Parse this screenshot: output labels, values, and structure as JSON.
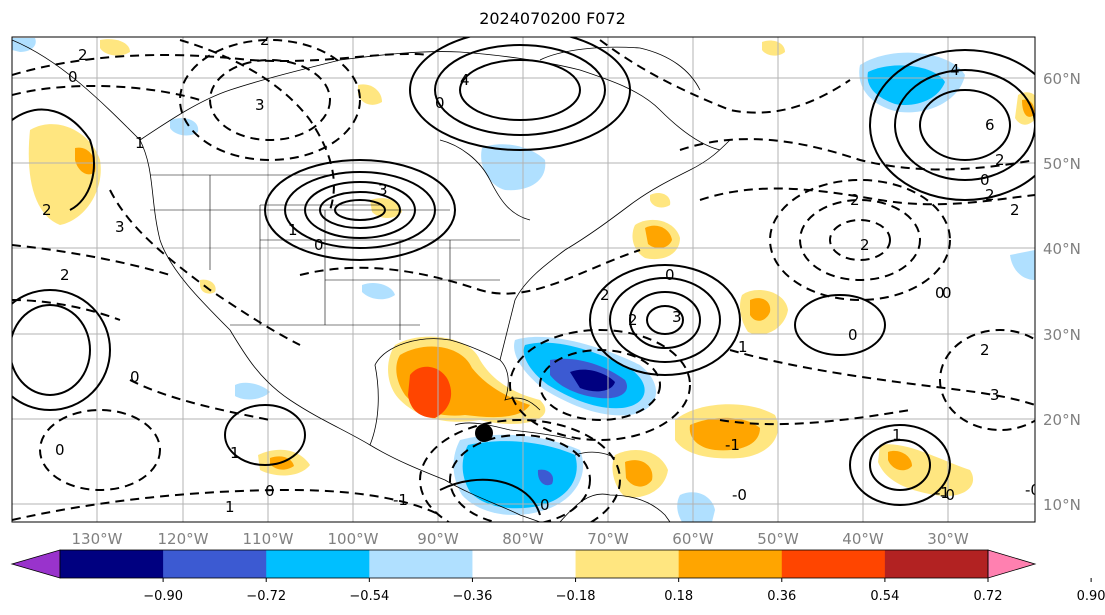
{
  "title": "2024070200 F072",
  "lat_labels": [
    "60°N",
    "50°N",
    "40°N",
    "30°N",
    "20°N",
    "10°N"
  ],
  "lon_labels": [
    "130°W",
    "120°W",
    "110°W",
    "100°W",
    "90°W",
    "80°W",
    "70°W",
    "60°W",
    "50°W",
    "40°W",
    "30°W"
  ],
  "colorbar": {
    "ticks": [
      "−0.90",
      "−0.72",
      "−0.54",
      "−0.36",
      "−0.18",
      "0.18",
      "0.36",
      "0.54",
      "0.72",
      "0.90"
    ],
    "colors": [
      "#9933cc",
      "#000080",
      "#3c5ad2",
      "#00bfff",
      "#b0e0ff",
      "#ffffff",
      "#ffe680",
      "#ffa500",
      "#ff4500",
      "#b22222",
      "#ff80b0"
    ]
  },
  "contour_labels": [
    "2",
    "0",
    "3",
    "2",
    "0",
    "4",
    "6",
    "2",
    "2",
    "0",
    "3",
    "1",
    "0",
    "2",
    "3",
    "0",
    "1",
    "0",
    "2",
    "0",
    "1",
    "4",
    "-1",
    "0",
    "2",
    "3",
    "0",
    "2",
    "2",
    "2",
    "0",
    "1",
    "1",
    "0",
    "-1",
    "-1",
    "2",
    "3",
    "-0",
    "-0",
    "0",
    "1",
    "-0",
    "2"
  ],
  "marker": "storm-center"
}
